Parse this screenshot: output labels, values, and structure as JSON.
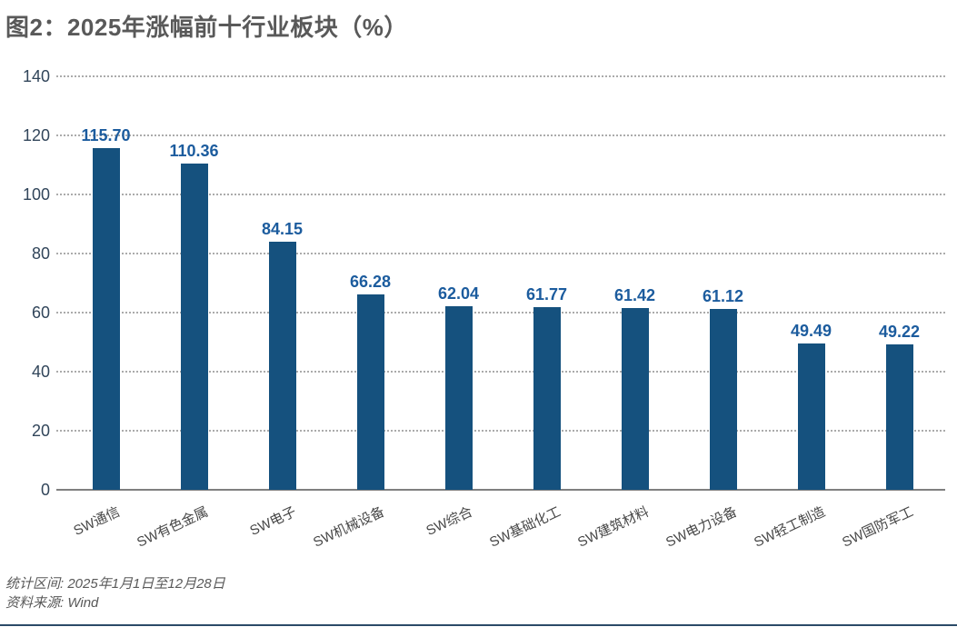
{
  "title": "图2：2025年涨幅前十行业板块（%）",
  "chart_data": {
    "type": "bar",
    "title": "图2：2025年涨幅前十行业板块（%）",
    "categories": [
      "SW通信",
      "SW有色金属",
      "SW电子",
      "SW机械设备",
      "SW综合",
      "SW基础化工",
      "SW建筑材料",
      "SW电力设备",
      "SW轻工制造",
      "SW国防军工"
    ],
    "values": [
      115.7,
      110.36,
      84.15,
      66.28,
      62.04,
      61.77,
      61.42,
      61.12,
      49.49,
      49.22
    ],
    "value_labels": [
      "115.70",
      "110.36",
      "84.15",
      "66.28",
      "62.04",
      "61.77",
      "61.42",
      "61.12",
      "49.49",
      "49.22"
    ],
    "xlabel": "",
    "ylabel": "",
    "ylim": [
      0,
      140
    ],
    "yticks": [
      0,
      20,
      40,
      60,
      80,
      100,
      120,
      140
    ],
    "grid": "horizontal-dotted",
    "legend": "none",
    "bar_color": "#15517E",
    "value_label_color": "#1C5C9E",
    "ytick_color": "#31455a",
    "xlabel_rotation_deg": -25
  },
  "footer": {
    "period": "统计区间: 2025年1月1日至12月28日",
    "source": "资料来源: Wind"
  }
}
